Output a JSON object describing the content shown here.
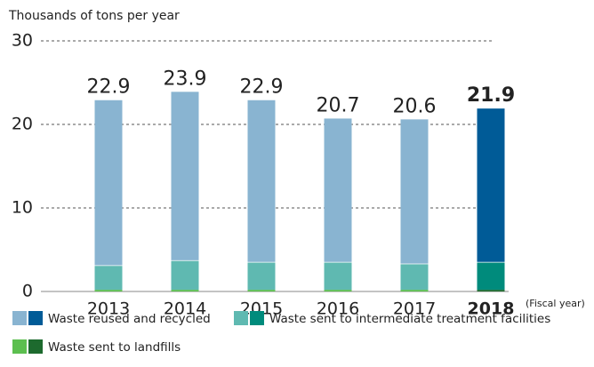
{
  "chart_data": {
    "type": "stacked_bar",
    "y_axis_label": "Thousands of tons per year",
    "x_axis_label": "(Fiscal year)",
    "categories": [
      "2013",
      "2014",
      "2015",
      "2016",
      "2017",
      "2018"
    ],
    "highlight": "2018",
    "totals": [
      22.9,
      23.9,
      22.9,
      20.7,
      20.6,
      21.9
    ],
    "series": [
      {
        "name": "Waste sent to landfills",
        "color": "#5cbf4f",
        "highlight_color": "#1d6a2e",
        "values": [
          0.2,
          0.2,
          0.2,
          0.2,
          0.2,
          0.2
        ]
      },
      {
        "name": "Waste sent to intermediate treatment facilities",
        "color": "#5fb9b1",
        "highlight_color": "#008b7c",
        "values": [
          2.9,
          3.5,
          3.3,
          3.3,
          3.1,
          3.3
        ]
      },
      {
        "name": "Waste reused and recycled",
        "color": "#89b4d1",
        "highlight_color": "#005b97",
        "values": [
          19.8,
          20.2,
          19.4,
          17.2,
          17.3,
          18.4
        ]
      }
    ],
    "ylim": [
      0,
      30
    ],
    "yticks": [
      0,
      10,
      20,
      30
    ],
    "grid": true
  }
}
